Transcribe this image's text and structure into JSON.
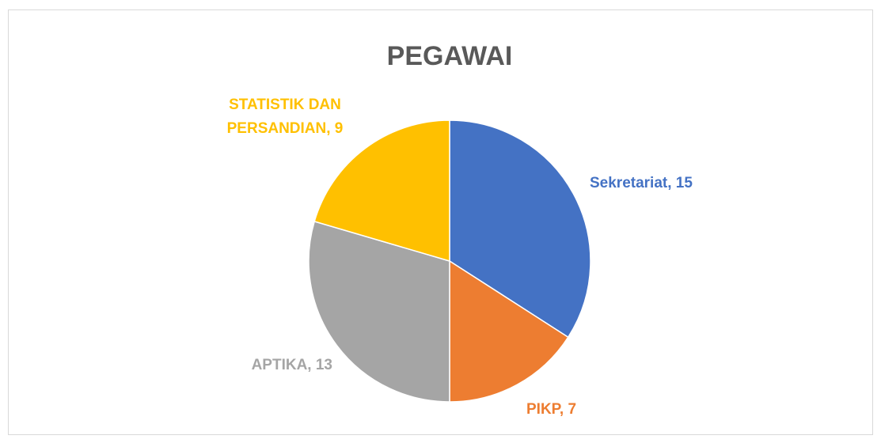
{
  "chart_data": {
    "type": "pie",
    "title": "PEGAWAI",
    "values": [
      15,
      7,
      13,
      9
    ],
    "value_labels": [
      "Sekretariat, 15",
      "PIKP, 7",
      "APTIKA, 13",
      "STATISTIK DAN PERSANDIAN, 9"
    ],
    "colors": [
      "#4472c4",
      "#ed7d31",
      "#a5a5a5",
      "#ffc000"
    ]
  }
}
